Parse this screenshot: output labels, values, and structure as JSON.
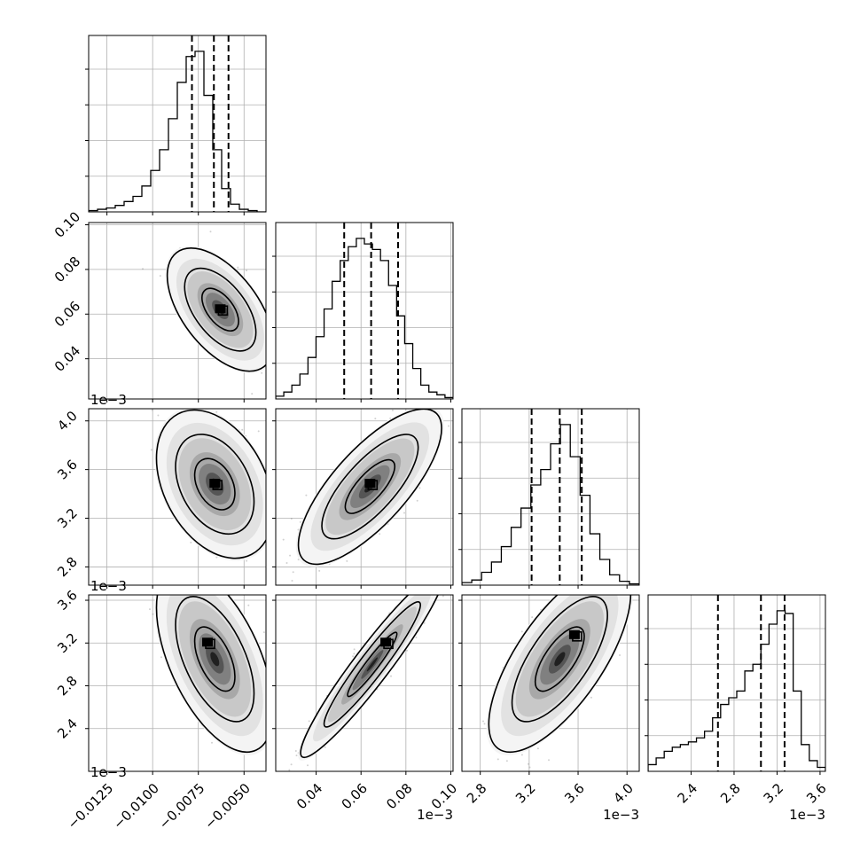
{
  "chart_data": {
    "type": "corner",
    "grid": true,
    "parameters": [
      {
        "range": [
          -0.0135,
          -0.0038
        ],
        "ticks": [
          -0.0125,
          -0.01,
          -0.0075,
          -0.005
        ],
        "tick_labels": [
          "−0.0125",
          "−0.0100",
          "−0.0075",
          "−0.0050"
        ],
        "offset_label": ""
      },
      {
        "range": [
          0.022,
          0.101
        ],
        "ticks": [
          0.04,
          0.06,
          0.08,
          0.1
        ],
        "tick_labels": [
          "0.04",
          "0.06",
          "0.08",
          "0.10"
        ],
        "offset_label": "1e−3"
      },
      {
        "range": [
          2.65,
          4.1
        ],
        "ticks": [
          2.8,
          3.2,
          3.6,
          4.0
        ],
        "tick_labels": [
          "2.8",
          "3.2",
          "3.6",
          "4.0"
        ],
        "offset_label": "1e−3"
      },
      {
        "range": [
          2.0,
          3.65
        ],
        "ticks": [
          2.4,
          2.8,
          3.2,
          3.6
        ],
        "tick_labels": [
          "2.4",
          "2.8",
          "3.2",
          "3.6"
        ],
        "offset_label": "1e−3"
      }
    ],
    "histograms": [
      {
        "param": 0,
        "bins": [
          -0.0135,
          -0.0038
        ],
        "counts": [
          1,
          2,
          3,
          5,
          8,
          12,
          20,
          32,
          48,
          72,
          100,
          120,
          124,
          90,
          48,
          18,
          6,
          2,
          1,
          0
        ],
        "quantiles": [
          -0.00785,
          -0.00665,
          -0.00585
        ]
      },
      {
        "param": 1,
        "bins": [
          0.022,
          0.101
        ],
        "counts": [
          2,
          5,
          10,
          18,
          30,
          45,
          65,
          85,
          100,
          110,
          116,
          112,
          108,
          100,
          82,
          60,
          40,
          22,
          10,
          5,
          3,
          1
        ],
        "quantiles": [
          0.0525,
          0.0645,
          0.0765
        ]
      },
      {
        "param": 2,
        "bins": [
          2.65,
          4.1
        ],
        "counts": [
          2,
          4,
          10,
          18,
          30,
          45,
          60,
          78,
          90,
          110,
          125,
          100,
          70,
          40,
          20,
          8,
          3,
          1
        ],
        "quantiles": [
          3.22,
          3.45,
          3.63
        ]
      },
      {
        "param": 3,
        "bins": [
          2.0,
          3.65
        ],
        "counts": [
          5,
          10,
          15,
          18,
          20,
          22,
          25,
          30,
          40,
          50,
          55,
          60,
          75,
          80,
          95,
          110,
          120,
          118,
          60,
          20,
          8,
          3
        ],
        "quantiles": [
          2.65,
          3.05,
          3.27
        ]
      }
    ],
    "pairs": [
      {
        "x": 0,
        "y": 1,
        "center": [
          -0.0063,
          0.062
        ],
        "sd": [
          0.001,
          0.0095
        ],
        "corr": -0.55,
        "contour_levels": [
          0.39,
          0.86,
          0.99
        ],
        "dark_center": [
          -0.0063,
          0.062
        ]
      },
      {
        "x": 0,
        "y": 2,
        "center": [
          -0.0066,
          3.48
        ],
        "sd": [
          0.0011,
          0.21
        ],
        "corr": -0.35,
        "contour_levels": [
          0.39,
          0.86,
          0.99
        ],
        "dark_center": [
          -0.0066,
          3.48
        ]
      },
      {
        "x": 1,
        "y": 2,
        "center": [
          0.064,
          3.46
        ],
        "sd": [
          0.011,
          0.22
        ],
        "corr": 0.75,
        "contour_levels": [
          0.39,
          0.86,
          0.99
        ],
        "dark_center": [
          0.064,
          3.48
        ]
      },
      {
        "x": 0,
        "y": 3,
        "center": [
          -0.0066,
          3.05
        ],
        "sd": [
          0.0011,
          0.3
        ],
        "corr": -0.55,
        "contour_levels": [
          0.39,
          0.86,
          0.99
        ],
        "dark_center": [
          -0.007,
          3.2
        ]
      },
      {
        "x": 1,
        "y": 3,
        "center": [
          0.065,
          3.0
        ],
        "sd": [
          0.011,
          0.3
        ],
        "corr": 0.95,
        "contour_levels": [
          0.39,
          0.86,
          0.99
        ],
        "dark_center": [
          0.071,
          3.2
        ]
      },
      {
        "x": 2,
        "y": 3,
        "center": [
          3.45,
          3.05
        ],
        "sd": [
          0.2,
          0.3
        ],
        "corr": 0.7,
        "contour_levels": [
          0.39,
          0.86,
          0.99
        ],
        "dark_center": [
          3.57,
          3.27
        ]
      }
    ],
    "colors": {
      "line": "#000000",
      "points": "#808080",
      "grid": "#b0b0b0"
    }
  }
}
